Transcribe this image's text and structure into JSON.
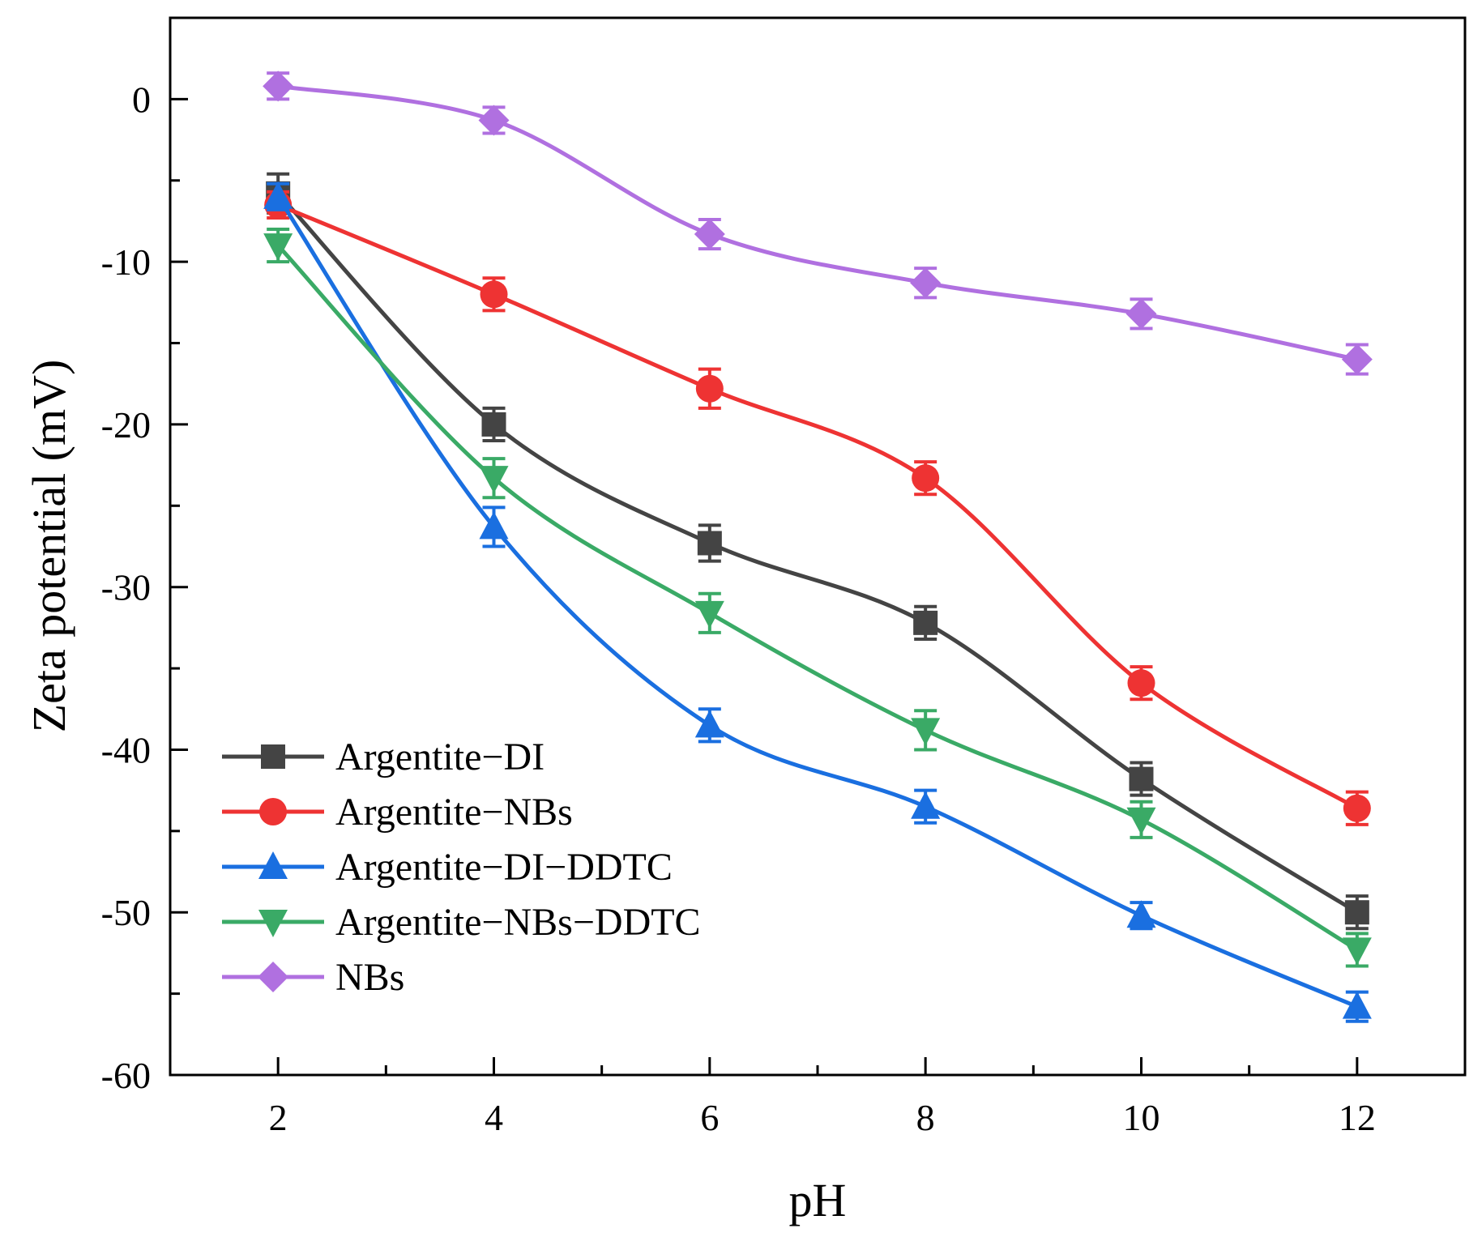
{
  "chart_data": {
    "type": "line",
    "title": "",
    "xlabel": "pH",
    "ylabel": "Zeta potential (mV)",
    "xlim": [
      1,
      13
    ],
    "ylim": [
      -60,
      5
    ],
    "x": [
      2,
      4,
      6,
      8,
      10,
      12
    ],
    "xticks": [
      2,
      4,
      6,
      8,
      10,
      12
    ],
    "xtick_labels": [
      "2",
      "4",
      "6",
      "8",
      "10",
      "12"
    ],
    "yticks": [
      0,
      -10,
      -20,
      -30,
      -40,
      -50,
      -60
    ],
    "ytick_labels": [
      "0",
      "-10",
      "-20",
      "-30",
      "-40",
      "-50",
      "-60"
    ],
    "grid": false,
    "legend_position": "bottom-left",
    "series": [
      {
        "name": "Argentite−DI",
        "color": "#444444",
        "marker": "square",
        "values": [
          -5.8,
          -20.0,
          -27.3,
          -32.2,
          -41.8,
          -50.0
        ],
        "errors": [
          1.2,
          1.0,
          1.1,
          1.0,
          1.0,
          1.0
        ]
      },
      {
        "name": "Argentite−NBs",
        "color": "#ee3333",
        "marker": "circle",
        "values": [
          -6.5,
          -12.0,
          -17.8,
          -23.3,
          -35.9,
          -43.6
        ],
        "errors": [
          0.8,
          1.0,
          1.2,
          1.0,
          1.0,
          1.0
        ]
      },
      {
        "name": "Argentite−DI−DDTC",
        "color": "#1a6fe0",
        "marker": "triangle-up",
        "values": [
          -6.0,
          -26.3,
          -38.5,
          -43.5,
          -50.2,
          -55.8
        ],
        "errors": [
          0.8,
          1.2,
          1.0,
          1.0,
          0.8,
          0.9
        ]
      },
      {
        "name": "Argentite−NBs−DDTC",
        "color": "#3aaa66",
        "marker": "triangle-down",
        "values": [
          -9.0,
          -23.3,
          -31.6,
          -38.8,
          -44.3,
          -52.3
        ],
        "errors": [
          1.0,
          1.2,
          1.2,
          1.2,
          1.1,
          1.0
        ]
      },
      {
        "name": "NBs",
        "color": "#b070e0",
        "marker": "diamond",
        "values": [
          0.8,
          -1.3,
          -8.3,
          -11.3,
          -13.2,
          -16.0
        ],
        "errors": [
          0.8,
          0.8,
          0.9,
          0.9,
          0.9,
          0.9
        ]
      }
    ]
  }
}
